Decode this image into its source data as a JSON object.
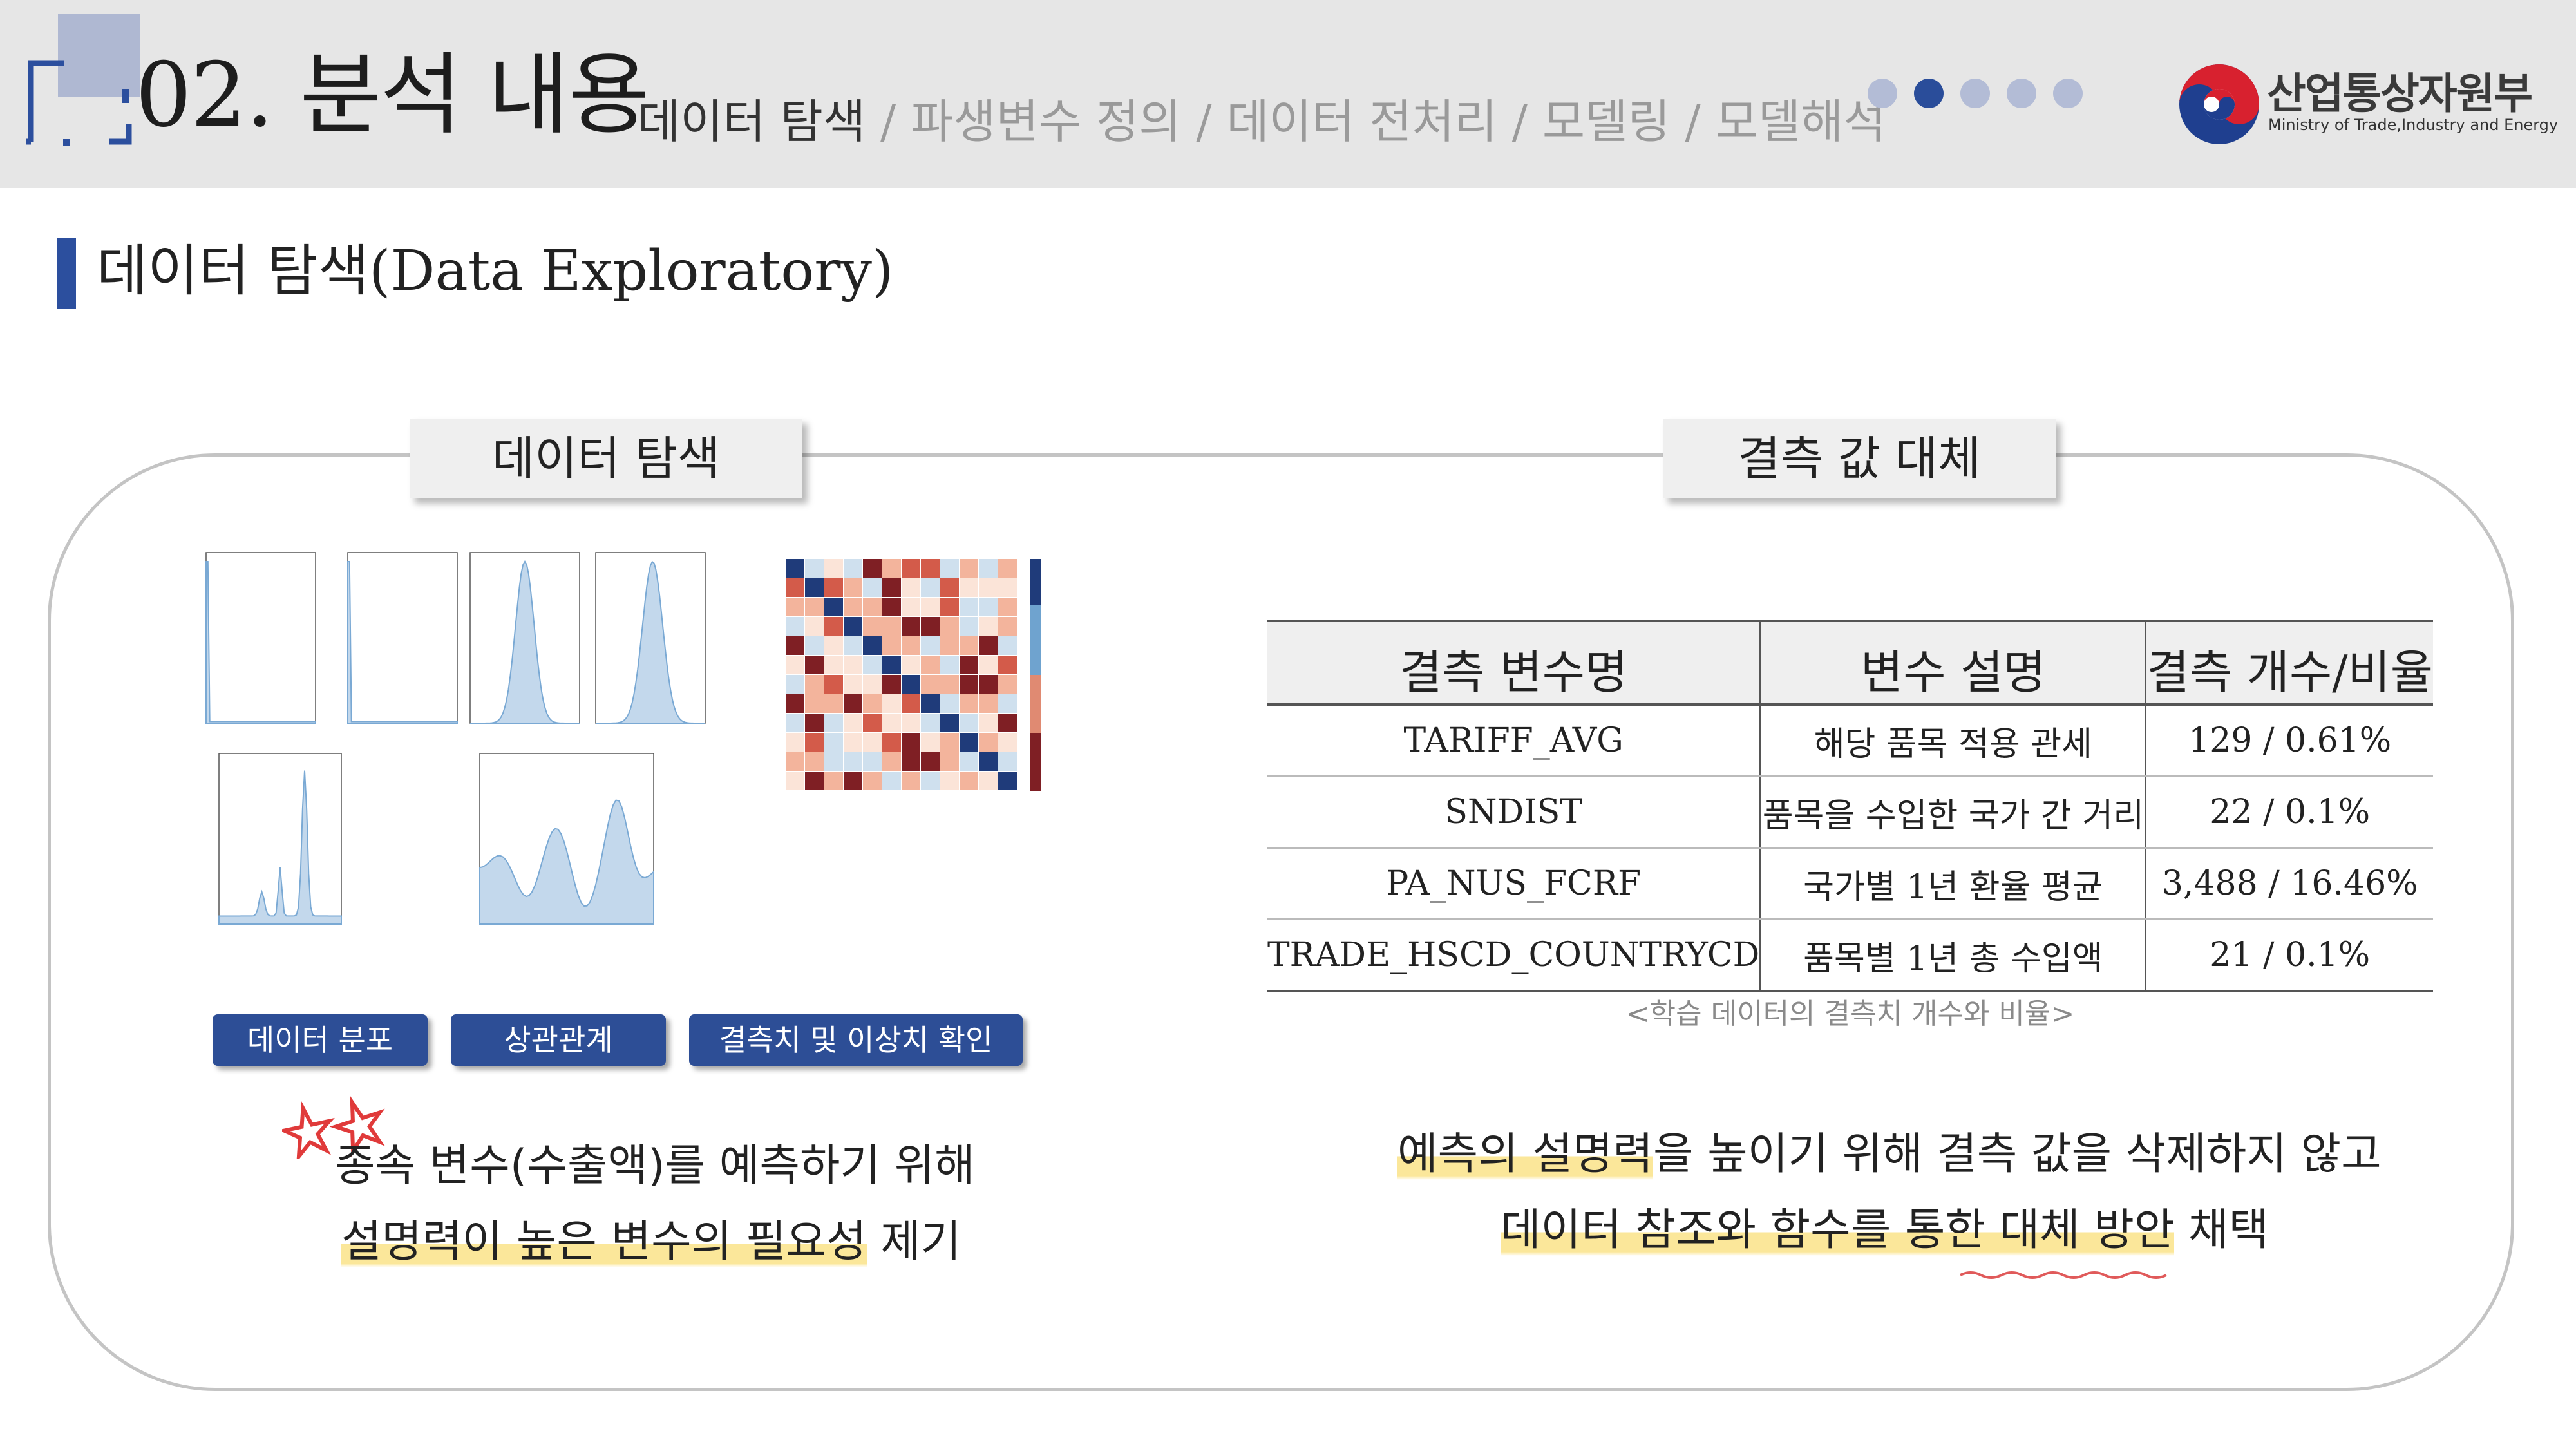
{
  "header": {
    "section_title": "02. 분석 내용",
    "breadcrumb": {
      "active": "데이터 탐색",
      "rest": [
        " / 파생변수 정의",
        " / 데이터 전처리",
        " / 모델링",
        " / 모델해석"
      ]
    },
    "page_indicator": {
      "total": 5,
      "current": 2
    },
    "ministry": {
      "name_ko": "산업통상자원부",
      "name_en": "Ministry of Trade,Industry and Energy"
    }
  },
  "subtitle": "데이터 탐색(Data Exploratory)",
  "left_panel": {
    "tab_label": "데이터 탐색",
    "buttons": [
      "데이터 분포",
      "상관관계",
      "결측치 및 이상치 확인"
    ],
    "statement_line1": "종속 변수(수출액)를 예측하기 위해",
    "statement_line2_highlight": "설명력이 높은 변수의 필요성",
    "statement_line2_rest": " 제기"
  },
  "right_panel": {
    "tab_label": "결측 값 대체",
    "table": {
      "headers": [
        "결측 변수명",
        "변수 설명",
        "결측 개수/비율"
      ],
      "rows": [
        [
          "TARIFF_AVG",
          "해당 품목 적용 관세",
          "129 / 0.61%"
        ],
        [
          "SNDIST",
          "품목을 수입한 국가 간 거리",
          "22 / 0.1%"
        ],
        [
          "PA_NUS_FCRF",
          "국가별 1년 환율 평균",
          "3,488 / 16.46%"
        ],
        [
          "TRADE_HSCD_COUNTRYCD",
          "품목별 1년 총 수입액",
          "21 / 0.1%"
        ]
      ]
    },
    "caption": "<학습 데이터의 결측치 개수와 비율>",
    "statement_line1_highlight": "예측의 설명력",
    "statement_line1_rest": "을 높이기 위해 결측 값을 삭제하지 않고",
    "statement_line2_highlight": "데이터 참조와 함수를 통한 대체 방안",
    "statement_line2_rest": " 채택"
  },
  "colors": {
    "accent_blue": "#2c4f9e",
    "header_bg": "#e6e6e6",
    "highlight_yellow": "#fbe79a",
    "chart_blue": "#7aa9d4"
  }
}
